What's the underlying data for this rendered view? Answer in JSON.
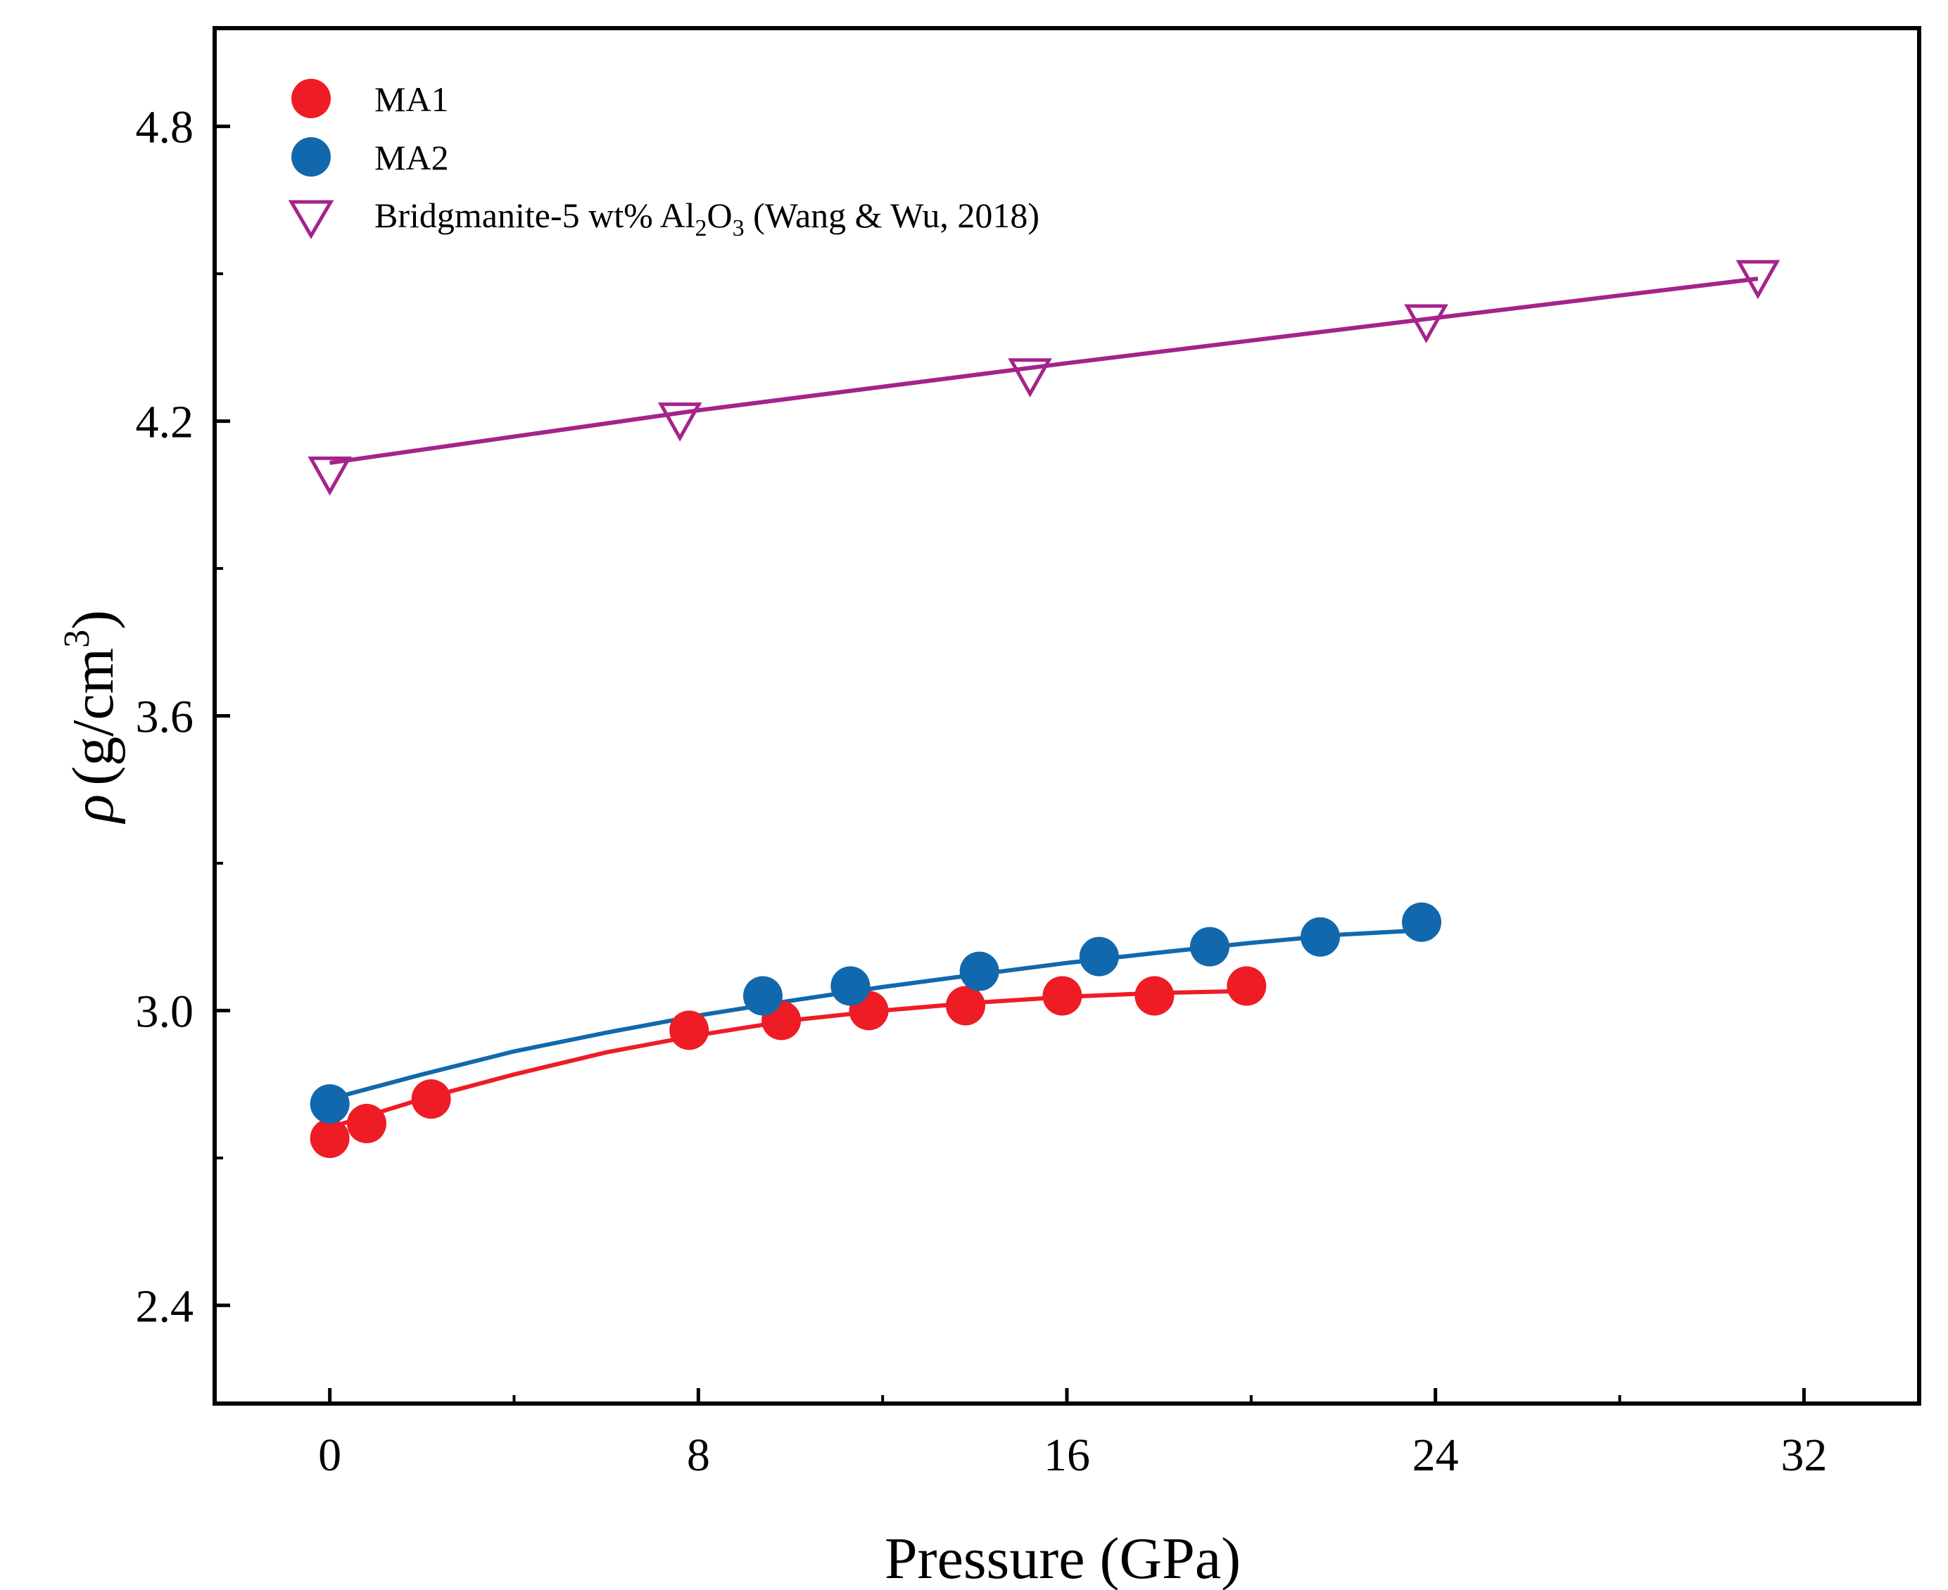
{
  "chart_data": {
    "type": "scatter",
    "xlabel": "Pressure (GPa)",
    "ylabel": {
      "symbol": "ρ",
      "text": "(g/cm",
      "sup": "3",
      "close": ")"
    },
    "xlim": [
      -2.5,
      34.5
    ],
    "ylim": [
      2.2,
      5.0
    ],
    "xticks": [
      0,
      8,
      16,
      24,
      32
    ],
    "xtick_labels": [
      "0",
      "8",
      "16",
      "24",
      "32"
    ],
    "xminor": [
      4,
      12,
      20,
      28
    ],
    "yticks": [
      2.4,
      3.0,
      3.6,
      4.2,
      4.8
    ],
    "ytick_labels": [
      "2.4",
      "3.0",
      "3.6",
      "4.2",
      "4.8"
    ],
    "yminor": [
      2.7,
      3.3,
      3.9,
      4.5
    ],
    "grid": false,
    "legend_position": "top-left",
    "series": [
      {
        "name": "MA1",
        "label": "MA1",
        "color": "#ee1c25",
        "marker": "filled-circle",
        "points": [
          [
            0,
            2.74
          ],
          [
            0.8,
            2.77
          ],
          [
            2.2,
            2.82
          ],
          [
            7.8,
            2.96
          ],
          [
            9.8,
            2.98
          ],
          [
            11.7,
            3.0
          ],
          [
            13.8,
            3.01
          ],
          [
            15.9,
            3.03
          ],
          [
            17.9,
            3.03
          ],
          [
            19.9,
            3.05
          ]
        ],
        "fit": [
          [
            0,
            2.762
          ],
          [
            2,
            2.82
          ],
          [
            4,
            2.87
          ],
          [
            6,
            2.915
          ],
          [
            8,
            2.95
          ],
          [
            10,
            2.98
          ],
          [
            12,
            3.0
          ],
          [
            14,
            3.016
          ],
          [
            16,
            3.028
          ],
          [
            18,
            3.036
          ],
          [
            20,
            3.04
          ]
        ]
      },
      {
        "name": "MA2",
        "label": "MA2",
        "color": "#1268ac",
        "marker": "filled-circle",
        "points": [
          [
            0,
            2.81
          ],
          [
            9.4,
            3.03
          ],
          [
            11.3,
            3.05
          ],
          [
            14.1,
            3.08
          ],
          [
            16.7,
            3.11
          ],
          [
            19.1,
            3.13
          ],
          [
            21.5,
            3.15
          ],
          [
            23.7,
            3.18
          ]
        ],
        "fit": [
          [
            0,
            2.82
          ],
          [
            2,
            2.87
          ],
          [
            4,
            2.917
          ],
          [
            6,
            2.955
          ],
          [
            8,
            2.99
          ],
          [
            10,
            3.02
          ],
          [
            12,
            3.048
          ],
          [
            14,
            3.073
          ],
          [
            16,
            3.097
          ],
          [
            18,
            3.118
          ],
          [
            20,
            3.138
          ],
          [
            22,
            3.155
          ],
          [
            24,
            3.165
          ]
        ]
      },
      {
        "name": "Bridgmanite-5 wt% Al2O3 (Wang & Wu, 2018)",
        "label_parts": [
          "Bridgmanite-5 wt% Al",
          "2",
          "O",
          "3",
          " (Wang & Wu, 2018)"
        ],
        "color": "#a5238b",
        "marker": "open-triangle-down",
        "points": [
          [
            0,
            4.1
          ],
          [
            7.6,
            4.21
          ],
          [
            15.2,
            4.3
          ],
          [
            23.8,
            4.41
          ],
          [
            31.0,
            4.5
          ]
        ],
        "fit": [
          [
            0,
            4.115
          ],
          [
            8,
            4.222
          ],
          [
            16,
            4.318
          ],
          [
            24,
            4.41
          ],
          [
            31,
            4.49
          ]
        ]
      }
    ]
  }
}
